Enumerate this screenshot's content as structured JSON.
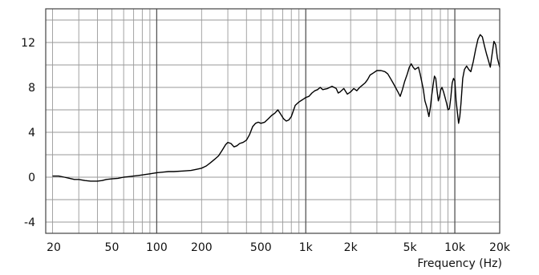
{
  "chart_data": {
    "type": "line",
    "xlabel": "Frequency (Hz)",
    "ylabel": "",
    "title": "",
    "x_scale": "log",
    "xlim": [
      18,
      20000
    ],
    "ylim": [
      -5,
      15
    ],
    "grid": true,
    "x_ticks": [
      20,
      50,
      100,
      200,
      500,
      1000,
      2000,
      5000,
      10000,
      20000
    ],
    "x_tick_labels": [
      "20",
      "50",
      "100",
      "200",
      "500",
      "1k",
      "2k",
      "5k",
      "10k",
      "20k"
    ],
    "y_ticks": [
      -4,
      0,
      4,
      8,
      12
    ],
    "y_tick_labels": [
      "-4",
      "0",
      "4",
      "8",
      "12"
    ],
    "series": [
      {
        "color": "#000000",
        "points": [
          [
            20,
            0.1
          ],
          [
            22,
            0.1
          ],
          [
            24,
            0.0
          ],
          [
            26,
            -0.1
          ],
          [
            28,
            -0.2
          ],
          [
            30,
            -0.2
          ],
          [
            33,
            -0.3
          ],
          [
            36,
            -0.35
          ],
          [
            40,
            -0.35
          ],
          [
            43,
            -0.3
          ],
          [
            46,
            -0.2
          ],
          [
            50,
            -0.15
          ],
          [
            55,
            -0.1
          ],
          [
            60,
            0.0
          ],
          [
            65,
            0.05
          ],
          [
            70,
            0.1
          ],
          [
            75,
            0.15
          ],
          [
            80,
            0.2
          ],
          [
            90,
            0.3
          ],
          [
            100,
            0.4
          ],
          [
            110,
            0.45
          ],
          [
            120,
            0.5
          ],
          [
            130,
            0.5
          ],
          [
            150,
            0.55
          ],
          [
            170,
            0.6
          ],
          [
            185,
            0.7
          ],
          [
            200,
            0.8
          ],
          [
            215,
            1.0
          ],
          [
            230,
            1.3
          ],
          [
            245,
            1.6
          ],
          [
            260,
            1.9
          ],
          [
            275,
            2.4
          ],
          [
            290,
            2.9
          ],
          [
            300,
            3.1
          ],
          [
            315,
            3.0
          ],
          [
            330,
            2.7
          ],
          [
            345,
            2.8
          ],
          [
            360,
            3.0
          ],
          [
            380,
            3.1
          ],
          [
            400,
            3.3
          ],
          [
            420,
            3.8
          ],
          [
            440,
            4.5
          ],
          [
            460,
            4.8
          ],
          [
            480,
            4.9
          ],
          [
            500,
            4.8
          ],
          [
            530,
            4.9
          ],
          [
            560,
            5.2
          ],
          [
            590,
            5.5
          ],
          [
            620,
            5.7
          ],
          [
            650,
            6.0
          ],
          [
            680,
            5.6
          ],
          [
            710,
            5.2
          ],
          [
            740,
            5.0
          ],
          [
            770,
            5.1
          ],
          [
            800,
            5.4
          ],
          [
            850,
            6.4
          ],
          [
            900,
            6.7
          ],
          [
            950,
            6.9
          ],
          [
            1000,
            7.1
          ],
          [
            1050,
            7.2
          ],
          [
            1100,
            7.5
          ],
          [
            1150,
            7.7
          ],
          [
            1200,
            7.8
          ],
          [
            1250,
            8.0
          ],
          [
            1300,
            7.8
          ],
          [
            1400,
            7.9
          ],
          [
            1500,
            8.1
          ],
          [
            1600,
            7.9
          ],
          [
            1650,
            7.5
          ],
          [
            1700,
            7.6
          ],
          [
            1800,
            7.9
          ],
          [
            1900,
            7.4
          ],
          [
            2000,
            7.6
          ],
          [
            2100,
            7.9
          ],
          [
            2200,
            7.7
          ],
          [
            2300,
            8.0
          ],
          [
            2400,
            8.2
          ],
          [
            2500,
            8.4
          ],
          [
            2600,
            8.7
          ],
          [
            2700,
            9.1
          ],
          [
            2850,
            9.3
          ],
          [
            3000,
            9.5
          ],
          [
            3200,
            9.5
          ],
          [
            3400,
            9.4
          ],
          [
            3550,
            9.2
          ],
          [
            3700,
            8.8
          ],
          [
            3850,
            8.4
          ],
          [
            4000,
            8.0
          ],
          [
            4150,
            7.6
          ],
          [
            4300,
            7.2
          ],
          [
            4450,
            7.8
          ],
          [
            4600,
            8.5
          ],
          [
            4800,
            9.2
          ],
          [
            4950,
            9.8
          ],
          [
            5100,
            10.1
          ],
          [
            5250,
            9.8
          ],
          [
            5400,
            9.6
          ],
          [
            5550,
            9.7
          ],
          [
            5700,
            9.8
          ],
          [
            5850,
            9.2
          ],
          [
            6000,
            8.5
          ],
          [
            6150,
            7.8
          ],
          [
            6300,
            6.8
          ],
          [
            6500,
            6.2
          ],
          [
            6700,
            5.4
          ],
          [
            6850,
            6.2
          ],
          [
            7000,
            7.3
          ],
          [
            7150,
            8.2
          ],
          [
            7300,
            9.0
          ],
          [
            7450,
            8.8
          ],
          [
            7600,
            7.7
          ],
          [
            7750,
            6.8
          ],
          [
            7900,
            7.2
          ],
          [
            8050,
            7.8
          ],
          [
            8200,
            8.0
          ],
          [
            8400,
            7.6
          ],
          [
            8600,
            7.1
          ],
          [
            8800,
            6.6
          ],
          [
            9000,
            6.0
          ],
          [
            9200,
            6.1
          ],
          [
            9400,
            7.1
          ],
          [
            9600,
            8.4
          ],
          [
            9800,
            8.8
          ],
          [
            10000,
            8.6
          ],
          [
            10200,
            6.8
          ],
          [
            10400,
            5.8
          ],
          [
            10600,
            4.8
          ],
          [
            10800,
            5.4
          ],
          [
            11000,
            6.6
          ],
          [
            11300,
            8.8
          ],
          [
            11600,
            9.6
          ],
          [
            12000,
            9.9
          ],
          [
            12400,
            9.6
          ],
          [
            12800,
            9.4
          ],
          [
            13300,
            10.3
          ],
          [
            13800,
            11.4
          ],
          [
            14300,
            12.3
          ],
          [
            14800,
            12.7
          ],
          [
            15300,
            12.5
          ],
          [
            15800,
            11.7
          ],
          [
            16300,
            11.0
          ],
          [
            16800,
            10.4
          ],
          [
            17300,
            9.8
          ],
          [
            17800,
            11.0
          ],
          [
            18300,
            12.1
          ],
          [
            18800,
            11.8
          ],
          [
            19300,
            10.6
          ],
          [
            20000,
            9.8
          ]
        ]
      }
    ]
  }
}
